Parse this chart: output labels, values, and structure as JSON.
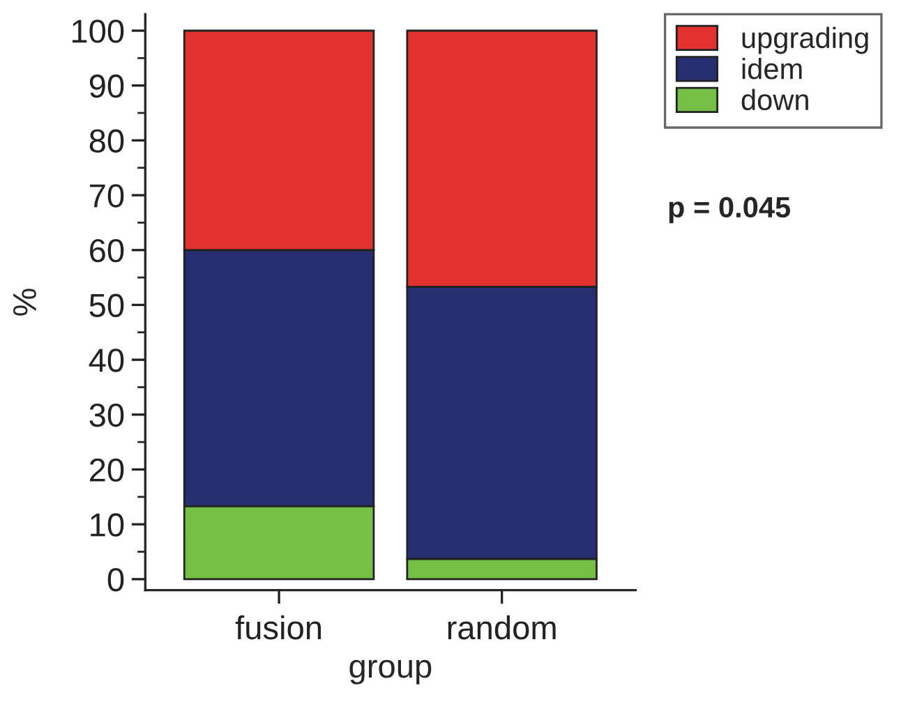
{
  "chart_data": {
    "type": "bar",
    "stacked": true,
    "xlabel": "group",
    "ylabel": "%",
    "categories": [
      "fusion",
      "random"
    ],
    "series": [
      {
        "name": "down",
        "color": "#74c044",
        "values": [
          13.3,
          3.7
        ]
      },
      {
        "name": "idem",
        "color": "#272e72",
        "values": [
          46.7,
          49.6
        ]
      },
      {
        "name": "upgrading",
        "color": "#e3312f",
        "values": [
          40.0,
          46.7
        ]
      }
    ],
    "ylim": [
      -2,
      103
    ],
    "yticks": [
      0,
      10,
      20,
      30,
      40,
      50,
      60,
      70,
      80,
      90,
      100
    ],
    "grid": false,
    "legend": "top right",
    "annotations": [
      "p = 0.045"
    ]
  }
}
